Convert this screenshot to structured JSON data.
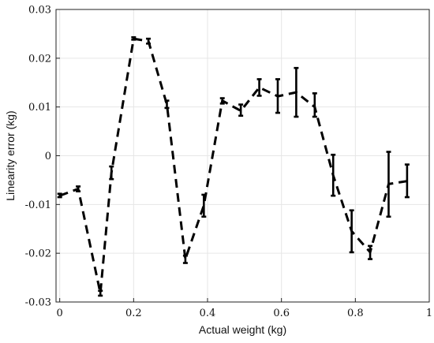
{
  "chart_data": {
    "type": "line",
    "xlabel": "Actual weight (kg)",
    "ylabel": "Linearity error (kg)",
    "xlim": [
      -0.01,
      1.0
    ],
    "ylim": [
      -0.03,
      0.03
    ],
    "x_ticks": [
      0,
      0.2,
      0.4,
      0.6,
      0.8,
      1
    ],
    "x_tick_labels": [
      "0",
      "0.2",
      "0.4",
      "0.6",
      "0.8",
      "1"
    ],
    "y_ticks": [
      -0.03,
      -0.02,
      -0.01,
      0,
      0.01,
      0.02,
      0.03
    ],
    "y_tick_labels": [
      "-0.03",
      "-0.02",
      "-0.01",
      "0",
      "0.01",
      "0.02",
      "0.03"
    ],
    "grid": true,
    "series": [
      {
        "line_style": "dashed",
        "color": "#000000",
        "x": [
          0,
          0.05,
          0.11,
          0.14,
          0.2,
          0.24,
          0.29,
          0.34,
          0.39,
          0.44,
          0.49,
          0.54,
          0.59,
          0.64,
          0.69,
          0.74,
          0.79,
          0.84,
          0.89,
          0.94
        ],
        "y": [
          -0.0082,
          -0.0068,
          -0.0282,
          -0.0035,
          0.024,
          0.0235,
          0.0105,
          -0.0212,
          -0.0102,
          0.0113,
          0.0092,
          0.014,
          0.0122,
          0.013,
          0.01,
          -0.004,
          -0.0155,
          -0.0198,
          -0.0058,
          -0.0052
        ],
        "error_low": [
          -0.0085,
          -0.0073,
          -0.0287,
          -0.0048,
          0.0238,
          0.023,
          0.0098,
          -0.022,
          -0.0125,
          0.0107,
          0.0082,
          0.0123,
          0.0088,
          0.008,
          0.008,
          -0.0082,
          -0.0198,
          -0.0212,
          -0.0125,
          -0.0085
        ],
        "error_high": [
          -0.0078,
          -0.0063,
          -0.0277,
          -0.0022,
          0.0243,
          0.024,
          0.0113,
          -0.0205,
          -0.008,
          0.0118,
          0.0105,
          0.0157,
          0.0157,
          0.018,
          0.0128,
          0.0002,
          -0.0112,
          -0.0185,
          0.0008,
          -0.0018
        ]
      }
    ]
  }
}
